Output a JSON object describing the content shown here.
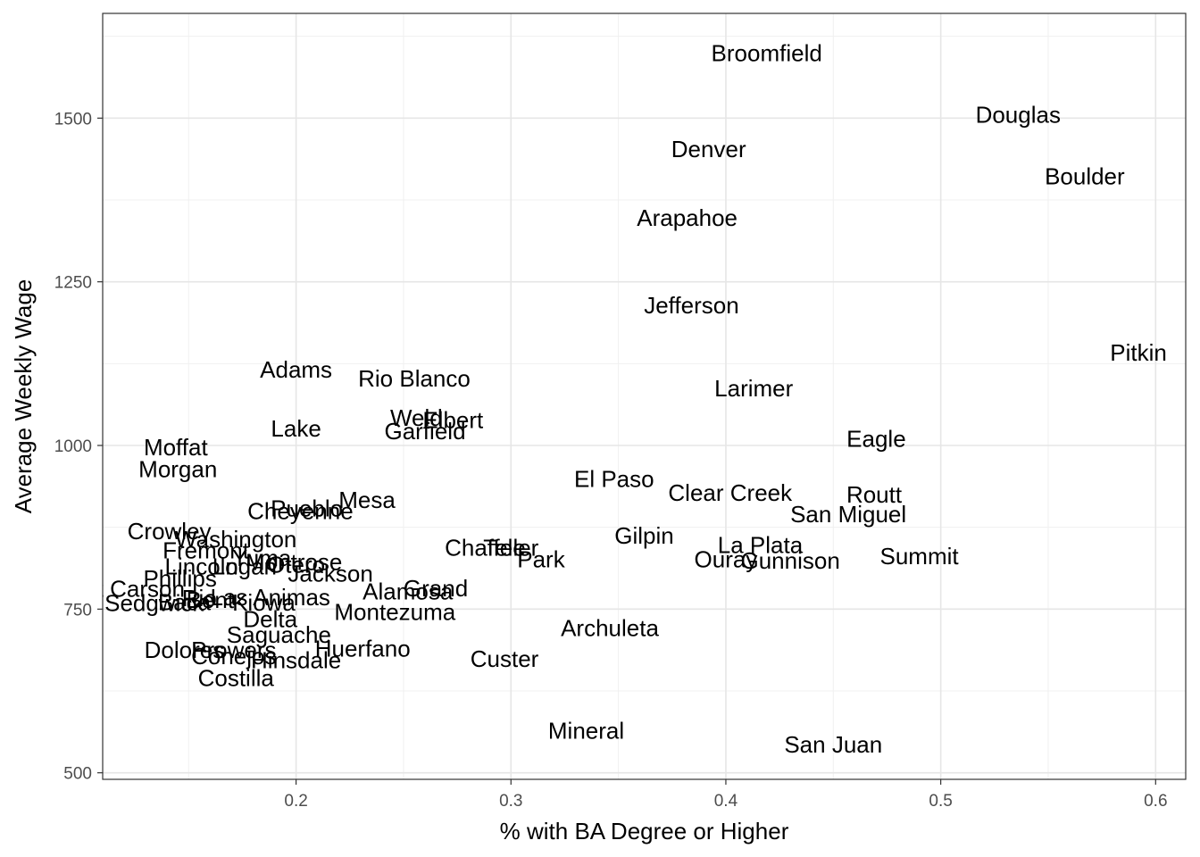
{
  "chart_data": {
    "type": "scatter",
    "marker": "text-label",
    "grid": true,
    "xlabel": "% with BA Degree or Higher",
    "ylabel": "Average Weekly Wage",
    "xlim": [
      0.11,
      0.614
    ],
    "ylim": [
      490,
      1660
    ],
    "x_ticks": [
      0.2,
      0.3,
      0.4,
      0.5,
      0.6
    ],
    "x_tick_labels": [
      "0.2",
      "0.3",
      "0.4",
      "0.5",
      "0.6"
    ],
    "y_ticks": [
      500,
      750,
      1000,
      1250,
      1500
    ],
    "y_tick_labels": [
      "500",
      "750",
      "1000",
      "1250",
      "1500"
    ],
    "points": [
      {
        "label": "Broomfield",
        "x": 0.419,
        "y": 1599
      },
      {
        "label": "Douglas",
        "x": 0.536,
        "y": 1505
      },
      {
        "label": "Denver",
        "x": 0.392,
        "y": 1453
      },
      {
        "label": "Boulder",
        "x": 0.567,
        "y": 1411
      },
      {
        "label": "Arapahoe",
        "x": 0.382,
        "y": 1348
      },
      {
        "label": "Jefferson",
        "x": 0.384,
        "y": 1214
      },
      {
        "label": "Pitkin",
        "x": 0.592,
        "y": 1142
      },
      {
        "label": "Adams",
        "x": 0.2,
        "y": 1116
      },
      {
        "label": "Rio Blanco",
        "x": 0.255,
        "y": 1102
      },
      {
        "label": "Larimer",
        "x": 0.413,
        "y": 1087
      },
      {
        "label": "Weld",
        "x": 0.256,
        "y": 1042
      },
      {
        "label": "Elbert",
        "x": 0.273,
        "y": 1039
      },
      {
        "label": "Lake",
        "x": 0.2,
        "y": 1026
      },
      {
        "label": "Garfield",
        "x": 0.26,
        "y": 1022
      },
      {
        "label": "Eagle",
        "x": 0.47,
        "y": 1010
      },
      {
        "label": "Moffat",
        "x": 0.144,
        "y": 997
      },
      {
        "label": "Morgan",
        "x": 0.145,
        "y": 964
      },
      {
        "label": "El Paso",
        "x": 0.348,
        "y": 949
      },
      {
        "label": "Clear Creek",
        "x": 0.402,
        "y": 928
      },
      {
        "label": "Routt",
        "x": 0.469,
        "y": 925
      },
      {
        "label": "Mesa",
        "x": 0.233,
        "y": 917
      },
      {
        "label": "Pueblo",
        "x": 0.205,
        "y": 904
      },
      {
        "label": "Cheyenne",
        "x": 0.202,
        "y": 900
      },
      {
        "label": "San Miguel",
        "x": 0.457,
        "y": 895
      },
      {
        "label": "Crowley",
        "x": 0.141,
        "y": 869
      },
      {
        "label": "Gilpin",
        "x": 0.362,
        "y": 862
      },
      {
        "label": "Washington",
        "x": 0.172,
        "y": 857
      },
      {
        "label": "La Plata",
        "x": 0.416,
        "y": 848
      },
      {
        "label": "Chaffee",
        "x": 0.288,
        "y": 844
      },
      {
        "label": "Teller",
        "x": 0.3,
        "y": 844
      },
      {
        "label": "Fremont",
        "x": 0.158,
        "y": 840
      },
      {
        "label": "Summit",
        "x": 0.49,
        "y": 831
      },
      {
        "label": "Park",
        "x": 0.314,
        "y": 826
      },
      {
        "label": "Ouray",
        "x": 0.4,
        "y": 826
      },
      {
        "label": "Gunnison",
        "x": 0.43,
        "y": 824
      },
      {
        "label": "Yuma",
        "x": 0.184,
        "y": 828
      },
      {
        "label": "Montrose",
        "x": 0.199,
        "y": 822
      },
      {
        "label": "Otero",
        "x": 0.2,
        "y": 818
      },
      {
        "label": "Lincoln",
        "x": 0.156,
        "y": 815
      },
      {
        "label": "Logan",
        "x": 0.176,
        "y": 815
      },
      {
        "label": "Jackson",
        "x": 0.216,
        "y": 804
      },
      {
        "label": "Phillips",
        "x": 0.146,
        "y": 797
      },
      {
        "label": "Kit Carson",
        "x": 0.123,
        "y": 781
      },
      {
        "label": "Alamosa",
        "x": 0.252,
        "y": 777
      },
      {
        "label": "Grand",
        "x": 0.265,
        "y": 782
      },
      {
        "label": "Las Animas",
        "x": 0.188,
        "y": 768
      },
      {
        "label": "Baca",
        "x": 0.148,
        "y": 761
      },
      {
        "label": "Rio",
        "x": 0.155,
        "y": 767
      },
      {
        "label": "Kiowa",
        "x": 0.185,
        "y": 760
      },
      {
        "label": "Sedgwick",
        "x": 0.134,
        "y": 759
      },
      {
        "label": "Bent",
        "x": 0.16,
        "y": 764
      },
      {
        "label": "Conejos",
        "x": 0.171,
        "y": 678
      },
      {
        "label": "Delta",
        "x": 0.188,
        "y": 735
      },
      {
        "label": "Montezuma",
        "x": 0.246,
        "y": 746
      },
      {
        "label": "Saguache",
        "x": 0.192,
        "y": 711
      },
      {
        "label": "Archuleta",
        "x": 0.346,
        "y": 721
      },
      {
        "label": "Dolores",
        "x": 0.148,
        "y": 688
      },
      {
        "label": "Prowers",
        "x": 0.171,
        "y": 688
      },
      {
        "label": "Huerfano",
        "x": 0.231,
        "y": 690
      },
      {
        "label": "Hinsdale",
        "x": 0.2,
        "y": 672
      },
      {
        "label": "Custer",
        "x": 0.297,
        "y": 674
      },
      {
        "label": "Costilla",
        "x": 0.172,
        "y": 645
      },
      {
        "label": "Mineral",
        "x": 0.335,
        "y": 564
      },
      {
        "label": "San Juan",
        "x": 0.45,
        "y": 543
      }
    ]
  }
}
